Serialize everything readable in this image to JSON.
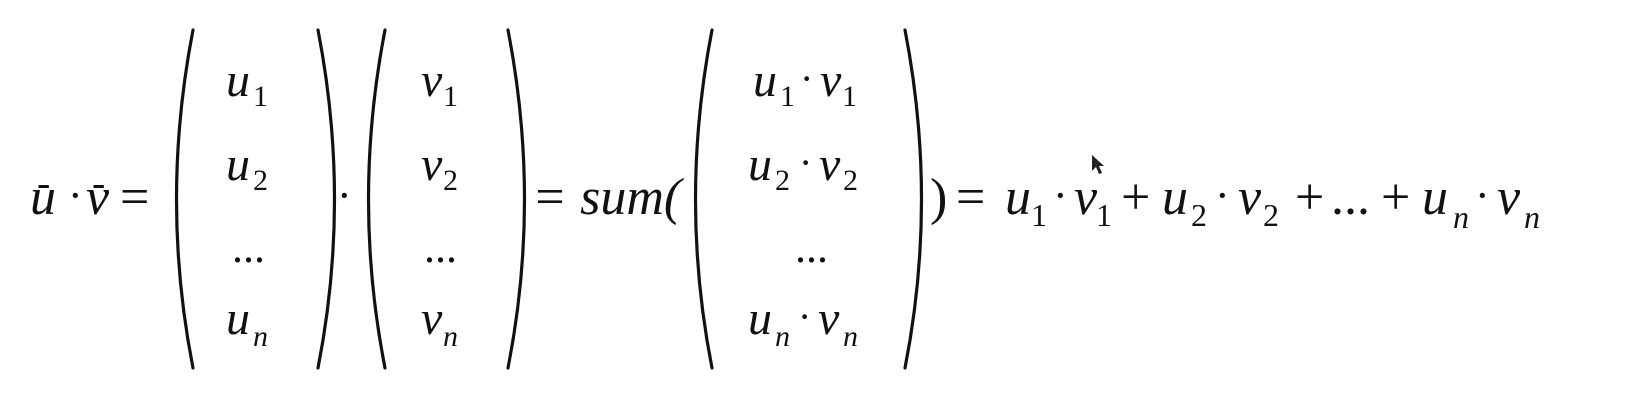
{
  "formula": {
    "lhs": {
      "u": "u",
      "v": "v",
      "arrow": "-",
      "dot": "·",
      "equals": "="
    },
    "vector_u": [
      {
        "base": "u",
        "sub": "1"
      },
      {
        "base": "u",
        "sub": "2"
      },
      {
        "base": "...",
        "sub": ""
      },
      {
        "base": "u",
        "sub": "n"
      }
    ],
    "between_dot": "·",
    "vector_v": [
      {
        "base": "v",
        "sub": "1"
      },
      {
        "base": "v",
        "sub": "2"
      },
      {
        "base": "...",
        "sub": ""
      },
      {
        "base": "v",
        "sub": "n"
      }
    ],
    "sum_label": "= sum(",
    "vector_uv": [
      {
        "a": "u",
        "as": "1",
        "b": "v",
        "bs": "1"
      },
      {
        "a": "u",
        "as": "2",
        "b": "v",
        "bs": "2"
      },
      {
        "a": "...",
        "as": "",
        "b": "",
        "bs": ""
      },
      {
        "a": "u",
        "as": "n",
        "b": "v",
        "bs": "n"
      }
    ],
    "close": ")",
    "rhs": {
      "equals": "=",
      "term1": {
        "a": "u",
        "as": "1",
        "b": "v",
        "bs": "1"
      },
      "plus1": "+",
      "term2": {
        "a": "u",
        "as": "2",
        "b": "v",
        "bs": "2"
      },
      "plus2": "+",
      "ellipsis": "...",
      "plus3": "+",
      "term3": {
        "a": "u",
        "as": "n",
        "b": "v",
        "bs": "n"
      }
    }
  }
}
